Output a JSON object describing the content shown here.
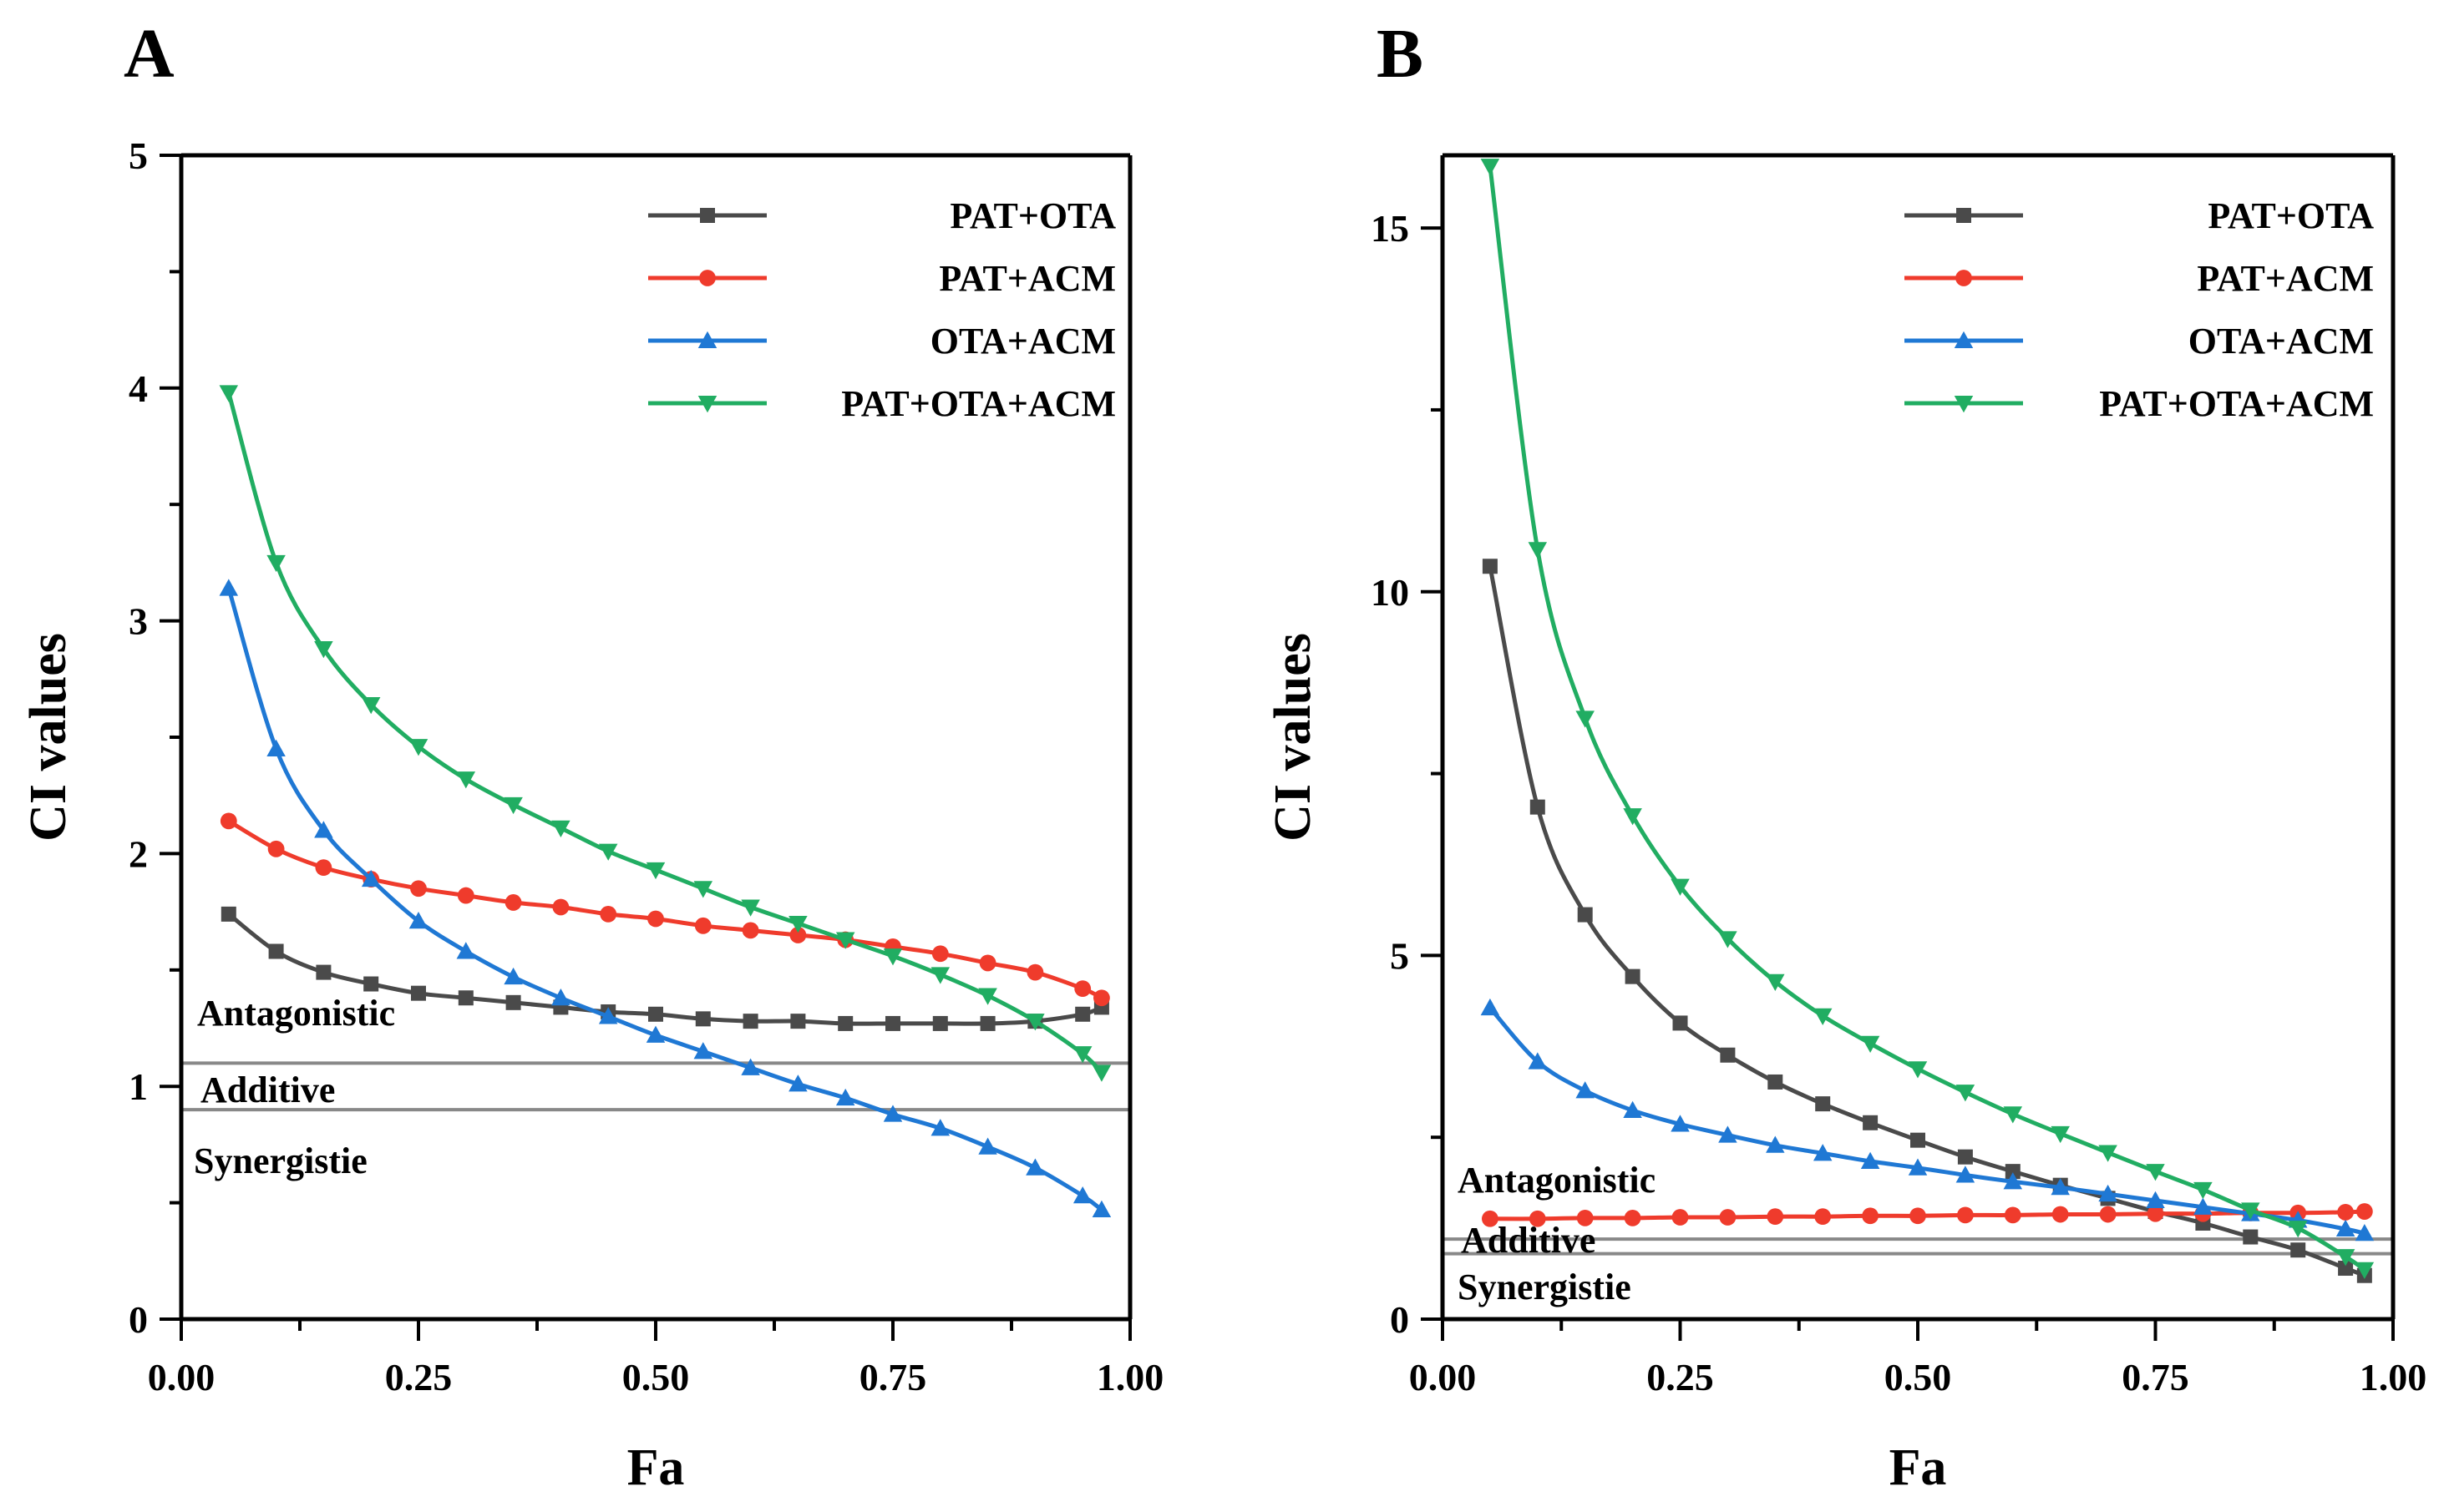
{
  "colors": {
    "PAT+OTA": "#4a4a4a",
    "PAT+ACM": "#ef3b2c",
    "OTA+ACM": "#1f78d4",
    "PAT+OTA+ACM": "#21ad62",
    "threshold": "#888888",
    "axis": "#000000"
  },
  "chart_data": [
    {
      "type": "line",
      "panel": "A",
      "xlabel": "Fa",
      "ylabel": "CI values",
      "xlim": [
        0,
        1
      ],
      "ylim": [
        0,
        5
      ],
      "xticks": [
        "0.00",
        "0.25",
        "0.50",
        "0.75",
        "1.00"
      ],
      "yticks": [
        "0",
        "1",
        "2",
        "3",
        "4",
        "5"
      ],
      "thresholds": [
        1.1,
        0.9
      ],
      "regions": [
        "Antagonistic",
        "Additive",
        "Synergistie"
      ],
      "legend_position": "top-right",
      "x": [
        0.05,
        0.1,
        0.15,
        0.2,
        0.25,
        0.3,
        0.35,
        0.4,
        0.45,
        0.5,
        0.55,
        0.6,
        0.65,
        0.7,
        0.75,
        0.8,
        0.85,
        0.9,
        0.95,
        0.97
      ],
      "series": [
        {
          "name": "PAT+OTA",
          "marker": "square",
          "values": [
            1.74,
            1.58,
            1.49,
            1.44,
            1.4,
            1.38,
            1.36,
            1.34,
            1.32,
            1.31,
            1.29,
            1.28,
            1.28,
            1.27,
            1.27,
            1.27,
            1.27,
            1.28,
            1.31,
            1.34
          ]
        },
        {
          "name": "PAT+ACM",
          "marker": "circle",
          "values": [
            2.14,
            2.02,
            1.94,
            1.89,
            1.85,
            1.82,
            1.79,
            1.77,
            1.74,
            1.72,
            1.69,
            1.67,
            1.65,
            1.63,
            1.6,
            1.57,
            1.53,
            1.49,
            1.42,
            1.38
          ]
        },
        {
          "name": "OTA+ACM",
          "marker": "triangle-up",
          "values": [
            3.14,
            2.45,
            2.1,
            1.89,
            1.71,
            1.58,
            1.47,
            1.38,
            1.3,
            1.22,
            1.15,
            1.08,
            1.01,
            0.95,
            0.88,
            0.82,
            0.74,
            0.65,
            0.53,
            0.47
          ]
        },
        {
          "name": "PAT+OTA+ACM",
          "marker": "triangle-down",
          "values": [
            3.98,
            3.25,
            2.88,
            2.64,
            2.46,
            2.32,
            2.21,
            2.11,
            2.01,
            1.93,
            1.85,
            1.77,
            1.7,
            1.63,
            1.56,
            1.48,
            1.39,
            1.28,
            1.14,
            1.06
          ]
        }
      ]
    },
    {
      "type": "line",
      "panel": "B",
      "xlabel": "Fa",
      "ylabel": "CI values",
      "xlim": [
        0,
        1
      ],
      "ylim": [
        0,
        16
      ],
      "xticks": [
        "0.00",
        "0.25",
        "0.50",
        "0.75",
        "1.00"
      ],
      "yticks": [
        "0",
        "5",
        "10",
        "15"
      ],
      "thresholds": [
        1.1,
        0.9
      ],
      "regions": [
        "Antagonistic",
        "Additive",
        "Synergistie"
      ],
      "legend_position": "top-right",
      "x": [
        0.05,
        0.1,
        0.15,
        0.2,
        0.25,
        0.3,
        0.35,
        0.4,
        0.45,
        0.5,
        0.55,
        0.6,
        0.65,
        0.7,
        0.75,
        0.8,
        0.85,
        0.9,
        0.95,
        0.97
      ],
      "series": [
        {
          "name": "PAT+OTA",
          "marker": "square",
          "values": [
            10.35,
            7.04,
            5.56,
            4.71,
            4.07,
            3.63,
            3.26,
            2.96,
            2.7,
            2.46,
            2.23,
            2.03,
            1.84,
            1.66,
            1.48,
            1.32,
            1.13,
            0.95,
            0.7,
            0.6
          ]
        },
        {
          "name": "PAT+ACM",
          "marker": "circle",
          "values": [
            1.38,
            1.38,
            1.39,
            1.39,
            1.4,
            1.4,
            1.41,
            1.41,
            1.42,
            1.42,
            1.43,
            1.43,
            1.44,
            1.44,
            1.45,
            1.45,
            1.46,
            1.46,
            1.47,
            1.48
          ]
        },
        {
          "name": "OTA+ACM",
          "marker": "triangle-up",
          "values": [
            4.28,
            3.54,
            3.14,
            2.87,
            2.68,
            2.53,
            2.39,
            2.28,
            2.17,
            2.08,
            1.98,
            1.89,
            1.81,
            1.72,
            1.63,
            1.54,
            1.45,
            1.36,
            1.24,
            1.18
          ]
        },
        {
          "name": "PAT+OTA+ACM",
          "marker": "triangle-down",
          "values": [
            15.85,
            10.58,
            8.26,
            6.92,
            5.95,
            5.23,
            4.64,
            4.17,
            3.79,
            3.44,
            3.12,
            2.82,
            2.55,
            2.29,
            2.03,
            1.78,
            1.5,
            1.25,
            0.86,
            0.68
          ]
        }
      ]
    }
  ]
}
